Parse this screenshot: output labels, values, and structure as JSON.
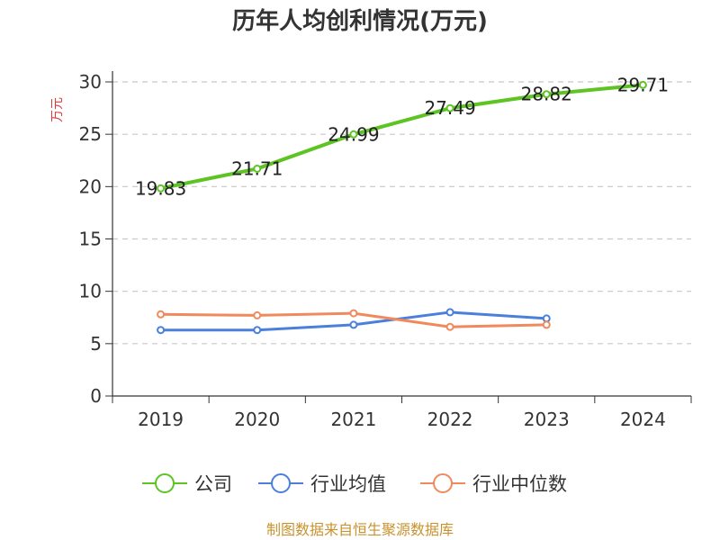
{
  "chart_data": {
    "type": "line",
    "title": "历年人均创利情况(万元)",
    "ylabel": "万元",
    "xlabel": "",
    "categories": [
      "2019",
      "2020",
      "2021",
      "2022",
      "2023",
      "2024"
    ],
    "ylim": [
      0,
      30
    ],
    "yticks": [
      0,
      5,
      10,
      15,
      20,
      25,
      30
    ],
    "grid": true,
    "legend_position": "bottom",
    "series": [
      {
        "name": "公司",
        "color": "#5ec424",
        "values": [
          19.83,
          21.71,
          24.99,
          27.49,
          28.82,
          29.71
        ],
        "labels": [
          "19.83",
          "21.71",
          "24.99",
          "27.49",
          "28.82",
          "29.71"
        ]
      },
      {
        "name": "行业均值",
        "color": "#4a7fdb",
        "values": [
          6.3,
          6.3,
          6.8,
          8.0,
          7.4,
          null
        ]
      },
      {
        "name": "行业中位数",
        "color": "#f08a5d",
        "values": [
          7.8,
          7.7,
          7.9,
          6.6,
          6.8,
          null
        ]
      }
    ]
  },
  "source": "制图数据来自恒生聚源数据库"
}
